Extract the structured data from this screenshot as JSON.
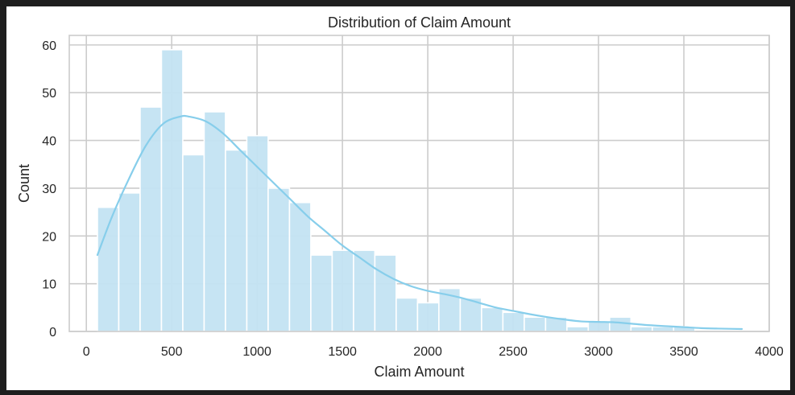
{
  "chart_data": {
    "type": "bar",
    "title": "Distribution of Claim Amount",
    "xlabel": "Claim Amount",
    "ylabel": "Count",
    "xlim": [
      -100,
      4000
    ],
    "ylim": [
      0,
      62
    ],
    "xticks": [
      0,
      500,
      1000,
      1500,
      2000,
      2500,
      3000,
      3500,
      4000
    ],
    "yticks": [
      0,
      10,
      20,
      30,
      40,
      50,
      60
    ],
    "grid": true,
    "bin_width": 125,
    "bins": [
      {
        "x0": 65,
        "x1": 190,
        "count": 26
      },
      {
        "x0": 190,
        "x1": 315,
        "count": 29
      },
      {
        "x0": 315,
        "x1": 440,
        "count": 47
      },
      {
        "x0": 440,
        "x1": 565,
        "count": 59
      },
      {
        "x0": 565,
        "x1": 690,
        "count": 37
      },
      {
        "x0": 690,
        "x1": 815,
        "count": 46
      },
      {
        "x0": 815,
        "x1": 940,
        "count": 38
      },
      {
        "x0": 940,
        "x1": 1065,
        "count": 41
      },
      {
        "x0": 1065,
        "x1": 1190,
        "count": 30
      },
      {
        "x0": 1190,
        "x1": 1315,
        "count": 27
      },
      {
        "x0": 1315,
        "x1": 1440,
        "count": 16
      },
      {
        "x0": 1440,
        "x1": 1565,
        "count": 17
      },
      {
        "x0": 1565,
        "x1": 1690,
        "count": 17
      },
      {
        "x0": 1690,
        "x1": 1815,
        "count": 16
      },
      {
        "x0": 1815,
        "x1": 1940,
        "count": 7
      },
      {
        "x0": 1940,
        "x1": 2065,
        "count": 6
      },
      {
        "x0": 2065,
        "x1": 2190,
        "count": 9
      },
      {
        "x0": 2190,
        "x1": 2315,
        "count": 7
      },
      {
        "x0": 2315,
        "x1": 2440,
        "count": 5
      },
      {
        "x0": 2440,
        "x1": 2565,
        "count": 4
      },
      {
        "x0": 2565,
        "x1": 2690,
        "count": 3
      },
      {
        "x0": 2690,
        "x1": 2815,
        "count": 3
      },
      {
        "x0": 2815,
        "x1": 2940,
        "count": 1
      },
      {
        "x0": 2940,
        "x1": 3065,
        "count": 2
      },
      {
        "x0": 3065,
        "x1": 3190,
        "count": 3
      },
      {
        "x0": 3190,
        "x1": 3315,
        "count": 1
      },
      {
        "x0": 3315,
        "x1": 3440,
        "count": 1
      },
      {
        "x0": 3440,
        "x1": 3565,
        "count": 1
      },
      {
        "x0": 3565,
        "x1": 3690,
        "count": 0
      },
      {
        "x0": 3690,
        "x1": 3815,
        "count": 0
      }
    ],
    "kde": {
      "x": [
        65,
        150,
        250,
        350,
        450,
        550,
        600,
        700,
        800,
        900,
        1000,
        1100,
        1200,
        1300,
        1400,
        1500,
        1600,
        1700,
        1800,
        1900,
        2000,
        2100,
        2200,
        2300,
        2400,
        2500,
        2600,
        2700,
        2800,
        2900,
        3000,
        3100,
        3200,
        3300,
        3400,
        3500,
        3600,
        3700,
        3840
      ],
      "y": [
        16,
        24,
        32,
        39,
        43.5,
        45,
        45,
        44,
        41.5,
        38,
        34.5,
        31,
        27.5,
        24,
        21,
        18,
        15.5,
        13,
        11,
        9.5,
        8.5,
        7.8,
        7,
        6,
        5,
        4.3,
        3.6,
        3,
        2.5,
        2.1,
        2.0,
        1.9,
        1.6,
        1.3,
        1.1,
        0.9,
        0.7,
        0.6,
        0.5
      ]
    },
    "colors": {
      "bar_fill": "#c3e3f2",
      "bar_stroke": "#ffffff",
      "kde_line": "#87ceeb",
      "grid": "#cccccc",
      "axes_edge": "#cccccc",
      "text": "#262626"
    }
  }
}
